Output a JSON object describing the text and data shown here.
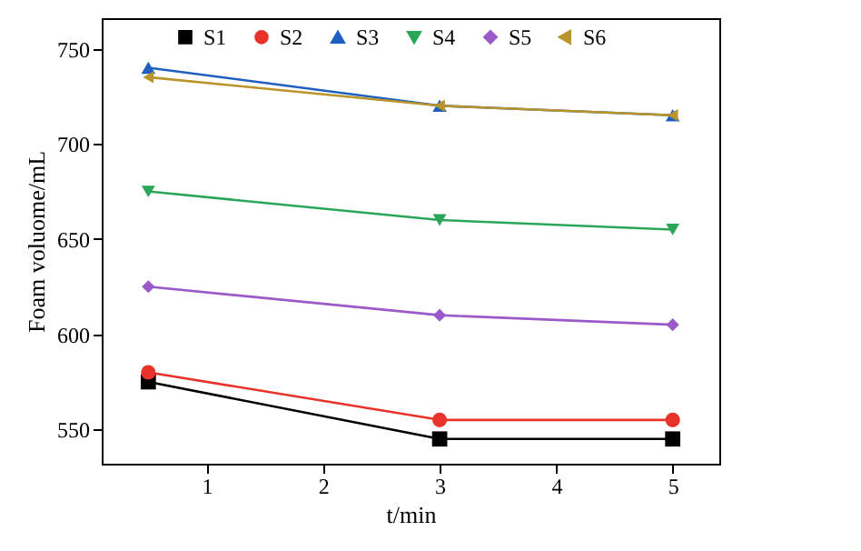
{
  "chart_data": {
    "type": "line",
    "xlabel": "t/min",
    "ylabel": "Foam voluome/mL",
    "x": [
      0.5,
      3,
      5
    ],
    "xlim": [
      0.1,
      5.4
    ],
    "xticks": [
      1,
      2,
      3,
      4,
      5
    ],
    "ylim": [
      532,
      766
    ],
    "yticks": [
      550,
      600,
      650,
      700,
      750
    ],
    "legend": "top",
    "grid": false,
    "series": [
      {
        "name": "S1",
        "color": "#000000",
        "marker": "square",
        "values": [
          575,
          545,
          545
        ]
      },
      {
        "name": "S2",
        "color": "#e8332a",
        "marker": "circle",
        "values": [
          580,
          555,
          555
        ]
      },
      {
        "name": "S3",
        "color": "#1f5fbf",
        "marker": "triangle",
        "values": [
          740,
          720,
          715
        ]
      },
      {
        "name": "S4",
        "color": "#2aa65a",
        "marker": "triangle-down",
        "values": [
          675,
          660,
          655
        ]
      },
      {
        "name": "S5",
        "color": "#9b59c9",
        "marker": "diamond",
        "values": [
          625,
          610,
          605
        ]
      },
      {
        "name": "S6",
        "color": "#b8942a",
        "marker": "triangle-left",
        "values": [
          735,
          720,
          715
        ]
      }
    ]
  }
}
